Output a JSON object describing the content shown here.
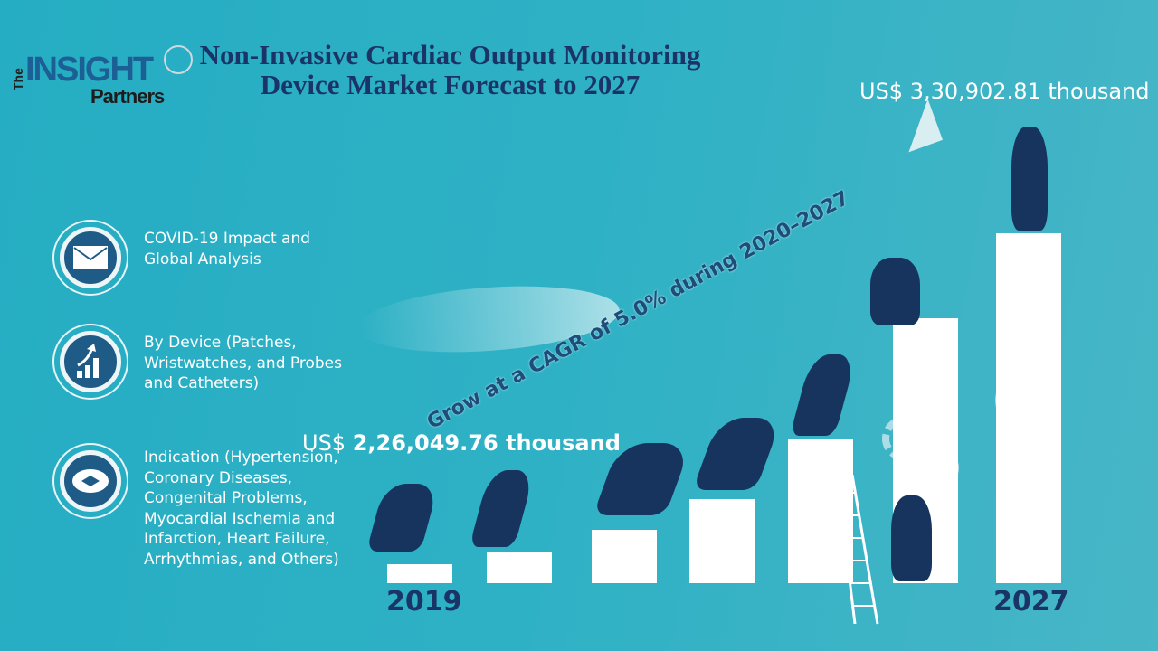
{
  "logo": {
    "the": "The",
    "insight": "INSIGHT",
    "partners": "Partners"
  },
  "title": "Non-Invasive Cardiac Output Monitoring Device Market Forecast to 2027",
  "segments": [
    {
      "icon": "envelope-icon",
      "label": "COVID-19 Impact and Global Analysis"
    },
    {
      "icon": "growth-chart-icon",
      "label": "By Device (Patches, Wristwatches, and Probes and Catheters)"
    },
    {
      "icon": "handshake-icon",
      "label": "Indication (Hypertension, Coronary Diseases, Congenital Problems, Myocardial Ischemia and Infarction, Heart Failure, Arrhythmias, and Others)"
    }
  ],
  "start": {
    "prefix": "US$ ",
    "value": "2,26,049.76 thousand",
    "year": "2019"
  },
  "end": {
    "value": "US$ 3,30,902.81 thousand",
    "year": "2027"
  },
  "cagr": "Grow at a CAGR of 5.0% during 2020–2027",
  "colors": {
    "background": "#2fb1c5",
    "title": "#1b3467",
    "icon_fill": "#1e5b87",
    "bars": "#ffffff"
  }
}
